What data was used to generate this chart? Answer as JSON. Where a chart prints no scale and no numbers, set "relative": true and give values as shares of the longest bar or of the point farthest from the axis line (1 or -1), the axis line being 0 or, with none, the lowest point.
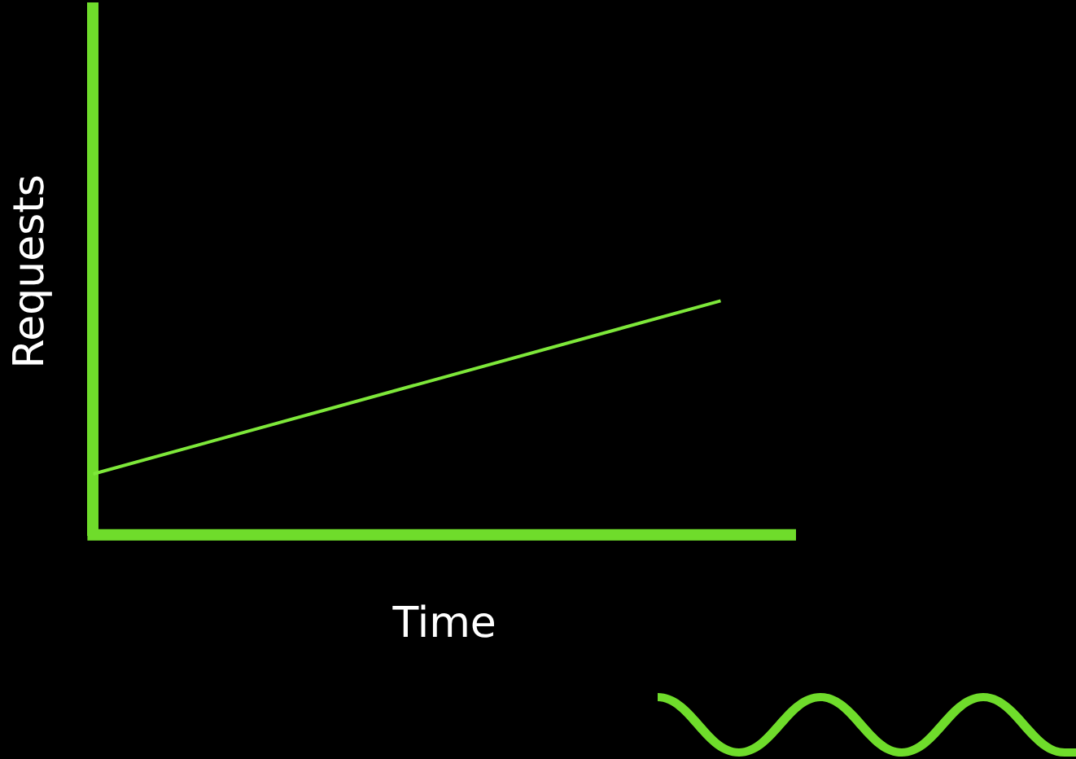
{
  "chart_data": {
    "type": "line",
    "xlabel": "Time",
    "ylabel": "Requests",
    "relative": true,
    "categories": [
      null,
      null
    ],
    "series": [
      {
        "color": "#7ee83a",
        "values": [
          0.26,
          1
        ]
      }
    ],
    "ref_lines": [
      {
        "axis": "y",
        "value": 0,
        "color": "#6fdc2b"
      }
    ],
    "grid": false,
    "legend": false,
    "marker": "none"
  }
}
